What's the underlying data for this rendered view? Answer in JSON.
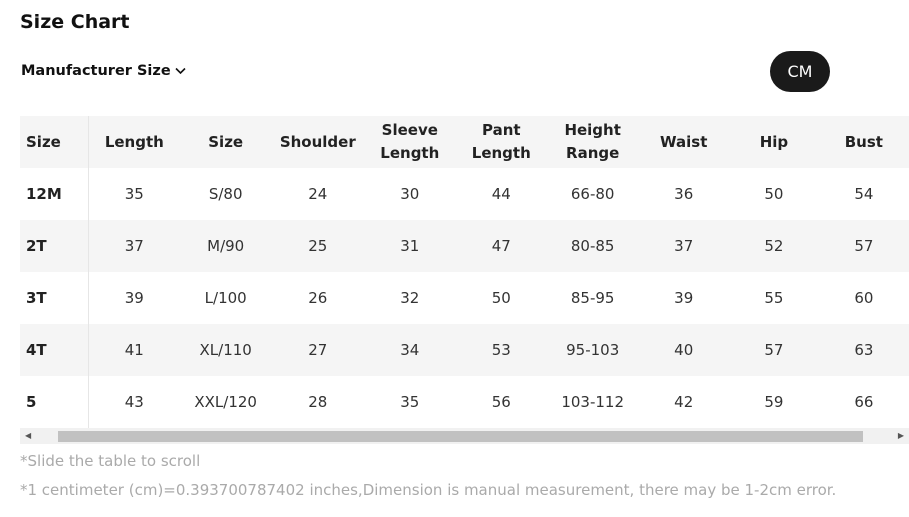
{
  "title": "Size Chart",
  "size_selector": {
    "label": "Manufacturer Size"
  },
  "unit_button": "CM",
  "table": {
    "headers": [
      "Size",
      "Length",
      "Size",
      "Shoulder",
      "Sleeve Length",
      "Pant Length",
      "Height Range",
      "Waist",
      "Hip",
      "Bust"
    ],
    "rows": [
      [
        "12M",
        "35",
        "S/80",
        "24",
        "30",
        "44",
        "66-80",
        "36",
        "50",
        "54"
      ],
      [
        "2T",
        "37",
        "M/90",
        "25",
        "31",
        "47",
        "80-85",
        "37",
        "52",
        "57"
      ],
      [
        "3T",
        "39",
        "L/100",
        "26",
        "32",
        "50",
        "85-95",
        "39",
        "55",
        "60"
      ],
      [
        "4T",
        "41",
        "XL/110",
        "27",
        "34",
        "53",
        "95-103",
        "40",
        "57",
        "63"
      ],
      [
        "5",
        "43",
        "XXL/120",
        "28",
        "35",
        "56",
        "103-112",
        "42",
        "59",
        "66"
      ]
    ]
  },
  "notes": [
    "*Slide the table to scroll",
    "*1 centimeter (cm)=0.393700787402 inches,Dimension is manual measurement, there may be 1-2cm error."
  ]
}
